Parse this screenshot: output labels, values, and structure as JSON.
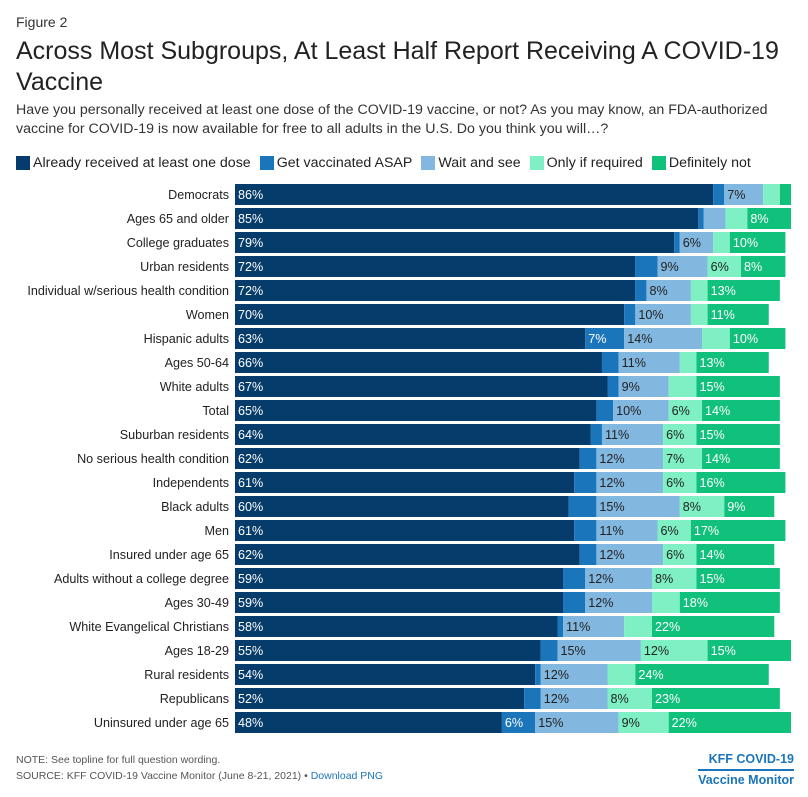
{
  "header": {
    "figure_label": "Figure 2",
    "title": "Across Most Subgroups, At Least Half Report Receiving A COVID-19 Vaccine",
    "subtitle": "Have you personally received at least one dose of the COVID-19 vaccine, or not? As you may know, an FDA-authorized vaccine for COVID-19 is now available for free to all adults in the U.S. Do you think you will…?"
  },
  "legend": [
    {
      "label": "Already received at least one dose",
      "color": "#063c6b"
    },
    {
      "label": "Get vaccinated ASAP",
      "color": "#1b75bb"
    },
    {
      "label": "Wait and see",
      "color": "#82b7e0"
    },
    {
      "label": "Only if required",
      "color": "#7ef0c3"
    },
    {
      "label": "Definitely not",
      "color": "#11c17b"
    }
  ],
  "chart_data": {
    "type": "bar",
    "orientation": "horizontal",
    "stacked": true,
    "title": "Across Most Subgroups, At Least Half Report Receiving A COVID-19 Vaccine",
    "xlim": [
      0,
      100
    ],
    "grid": false,
    "legend_position": "top",
    "categories": [
      "Democrats",
      "Ages 65 and older",
      "College graduates",
      "Urban residents",
      "Individual w/serious health condition",
      "Women",
      "Hispanic adults",
      "Ages 50-64",
      "White adults",
      "Total",
      "Suburban residents",
      "No serious health condition",
      "Independents",
      "Black adults",
      "Men",
      "Insured under age 65",
      "Adults without a college degree",
      "Ages 30-49",
      "White Evangelical Christians",
      "Ages 18-29",
      "Rural residents",
      "Republicans",
      "Uninsured under age 65"
    ],
    "series": [
      {
        "name": "Already received at least one dose",
        "color": "#063c6b",
        "values": [
          86,
          85,
          79,
          72,
          72,
          70,
          63,
          66,
          67,
          65,
          64,
          62,
          61,
          60,
          61,
          62,
          59,
          59,
          58,
          55,
          54,
          52,
          48
        ]
      },
      {
        "name": "Get vaccinated ASAP",
        "color": "#1b75bb",
        "values": [
          2,
          1,
          1,
          4,
          2,
          2,
          7,
          3,
          2,
          3,
          2,
          3,
          4,
          5,
          4,
          3,
          4,
          4,
          1,
          3,
          1,
          3,
          6
        ]
      },
      {
        "name": "Wait and see",
        "color": "#82b7e0",
        "values": [
          7,
          4,
          6,
          9,
          8,
          10,
          14,
          11,
          9,
          10,
          11,
          12,
          12,
          15,
          11,
          12,
          12,
          12,
          11,
          15,
          12,
          12,
          15
        ]
      },
      {
        "name": "Only if required",
        "color": "#7ef0c3",
        "values": [
          3,
          4,
          3,
          6,
          3,
          3,
          5,
          3,
          5,
          6,
          6,
          7,
          6,
          8,
          6,
          6,
          8,
          5,
          5,
          12,
          5,
          8,
          9
        ]
      },
      {
        "name": "Definitely not",
        "color": "#11c17b",
        "values": [
          2,
          8,
          10,
          8,
          13,
          11,
          10,
          13,
          15,
          14,
          15,
          14,
          16,
          9,
          17,
          14,
          15,
          18,
          22,
          15,
          24,
          23,
          22
        ]
      }
    ],
    "labels": [
      [
        "86%",
        "",
        "7%",
        "",
        ""
      ],
      [
        "85%",
        "",
        "",
        "",
        "8%"
      ],
      [
        "79%",
        "",
        "6%",
        "",
        "10%"
      ],
      [
        "72%",
        "",
        "9%",
        "6%",
        "8%"
      ],
      [
        "72%",
        "",
        "8%",
        "",
        "13%"
      ],
      [
        "70%",
        "",
        "10%",
        "",
        "11%"
      ],
      [
        "63%",
        "7%",
        "14%",
        "",
        "10%"
      ],
      [
        "66%",
        "",
        "11%",
        "",
        "13%"
      ],
      [
        "67%",
        "",
        "9%",
        "",
        "15%"
      ],
      [
        "65%",
        "",
        "10%",
        "6%",
        "14%"
      ],
      [
        "64%",
        "",
        "11%",
        "6%",
        "15%"
      ],
      [
        "62%",
        "",
        "12%",
        "7%",
        "14%"
      ],
      [
        "61%",
        "",
        "12%",
        "6%",
        "16%"
      ],
      [
        "60%",
        "",
        "15%",
        "8%",
        "9%"
      ],
      [
        "61%",
        "",
        "11%",
        "6%",
        "17%"
      ],
      [
        "62%",
        "",
        "12%",
        "6%",
        "14%"
      ],
      [
        "59%",
        "",
        "12%",
        "8%",
        "15%"
      ],
      [
        "59%",
        "",
        "12%",
        "",
        "18%"
      ],
      [
        "58%",
        "",
        "11%",
        "",
        "22%"
      ],
      [
        "55%",
        "",
        "15%",
        "12%",
        "15%"
      ],
      [
        "54%",
        "",
        "12%",
        "",
        "24%"
      ],
      [
        "52%",
        "",
        "12%",
        "8%",
        "23%"
      ],
      [
        "48%",
        "6%",
        "15%",
        "9%",
        "22%"
      ]
    ]
  },
  "footer": {
    "note": "NOTE: See topline for full question wording.",
    "source": "SOURCE: KFF COVID-19 Vaccine Monitor (June 8-21, 2021) •",
    "download_link": "Download PNG",
    "brand_line1": "KFF COVID-19",
    "brand_line2": "Vaccine Monitor"
  }
}
